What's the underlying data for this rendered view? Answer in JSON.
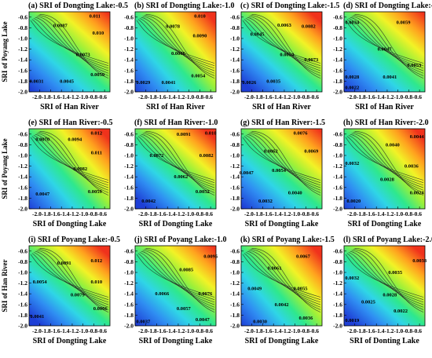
{
  "figure": {
    "rows": [
      {
        "ylabel": "SRI of Poyang Lake",
        "panels": [
          {
            "title": "(a)  SRI of Dongting Lake:-0.5",
            "xlabel": "SRI of Han River"
          },
          {
            "title": "(b)  SRI of Dongting Lake:-1.0",
            "xlabel": "SRI of Han River"
          },
          {
            "title": "(c)  SRI of Dongting Lake:-1.5",
            "xlabel": "SRI of Han River"
          },
          {
            "title": "(d)  SRI of Dongting Lake:-2.0",
            "xlabel": "SRI of Han River"
          }
        ]
      },
      {
        "ylabel": "SRI of Poyang Lake",
        "panels": [
          {
            "title": "(e)  SRI of Han River:-0.5",
            "xlabel": "SRI of Dongting Lake"
          },
          {
            "title": "(f)  SRI of Han River:-1.0",
            "xlabel": "SRI of Dongting Lake"
          },
          {
            "title": "(g)  SRI of Han River:-1.5",
            "xlabel": "SRI of Dongting Lake"
          },
          {
            "title": "(h)  SRI of Han River:-2.0",
            "xlabel": "SRI of Dongting Lake"
          }
        ]
      },
      {
        "ylabel": "SRI of Han River",
        "panels": [
          {
            "title": "(i)  SRI of Poyang Lake:-0.5",
            "xlabel": "SRI of Dongting Lake"
          },
          {
            "title": "(j)  SRI of Poyang Lake:-1.0",
            "xlabel": "SRI of Dongting Lake"
          },
          {
            "title": "(k)  SRI of Poyang Lake:-1.5",
            "xlabel": "SRI of Dongting Lake"
          },
          {
            "title": "(l)  SRI of Poyang Lake:-2.0",
            "xlabel": "SRI of Donting Lake"
          }
        ]
      }
    ]
  },
  "chart_data": [
    {
      "type": "heatmap",
      "panel": "a",
      "title": "SRI of Dongting Lake:-0.5",
      "xlabel": "SRI of Han River",
      "ylabel": "SRI of Poyang Lake",
      "xlim": [
        -2.0,
        -0.5
      ],
      "ylim": [
        -2.0,
        -0.5
      ],
      "xticks": [
        "-2.0",
        "-1.8",
        "-1.6",
        "-1.4",
        "-1.2",
        "-1.0",
        "-0.8",
        "-0.6"
      ],
      "yticks": [
        "-0.6",
        "-0.8",
        "-1.0",
        "-1.2",
        "-1.4",
        "-1.6",
        "-1.8",
        "-2.0"
      ],
      "vmin": 0.0031,
      "vmax": 0.0111,
      "contour_labels": [
        {
          "text": "0.011",
          "x": -0.78,
          "y": -0.58
        },
        {
          "text": "0.0087",
          "x": -1.42,
          "y": -0.76
        },
        {
          "text": "0.010",
          "x": -0.72,
          "y": -0.9
        },
        {
          "text": "0.0073",
          "x": -1.0,
          "y": -1.3
        },
        {
          "text": "0.0059",
          "x": -0.73,
          "y": -1.68
        },
        {
          "text": "0.0045",
          "x": -1.3,
          "y": -1.8
        },
        {
          "text": "0.0031",
          "x": -1.86,
          "y": -1.8
        }
      ]
    },
    {
      "type": "heatmap",
      "panel": "b",
      "title": "SRI of Dongting Lake:-1.0",
      "xlabel": "SRI of Han River",
      "ylabel": "SRI of Poyang Lake",
      "xlim": [
        -2.0,
        -0.5
      ],
      "ylim": [
        -2.0,
        -0.5
      ],
      "xticks": [
        "-2.0",
        "-1.8",
        "-1.6",
        "-1.4",
        "-1.2",
        "-1.0",
        "-0.8",
        "-0.6"
      ],
      "yticks": [
        "-0.6",
        "-0.8",
        "-1.0",
        "-1.2",
        "-1.4",
        "-1.6",
        "-1.8",
        "-2.0"
      ],
      "vmin": 0.0029,
      "vmax": 0.0104,
      "contour_labels": [
        {
          "text": "0.010",
          "x": -0.8,
          "y": -0.58
        },
        {
          "text": "0.0078",
          "x": -1.3,
          "y": -0.77
        },
        {
          "text": "0.0090",
          "x": -0.8,
          "y": -0.95
        },
        {
          "text": "0.0066",
          "x": -1.2,
          "y": -1.28
        },
        {
          "text": "0.0054",
          "x": -0.83,
          "y": -1.7
        },
        {
          "text": "0.0041",
          "x": -1.38,
          "y": -1.82
        },
        {
          "text": "0.0029",
          "x": -1.85,
          "y": -1.82
        }
      ]
    },
    {
      "type": "heatmap",
      "panel": "c",
      "title": "SRI of Dongting Lake:-1.5",
      "xlabel": "SRI of Han River",
      "ylabel": "SRI of Poyang Lake",
      "xlim": [
        -2.0,
        -0.5
      ],
      "ylim": [
        -2.0,
        -0.5
      ],
      "xticks": [
        "-2.0",
        "-1.8",
        "-1.6",
        "-1.4",
        "-1.2",
        "-1.0",
        "-0.8",
        "-0.6"
      ],
      "yticks": [
        "-0.6",
        "-0.8",
        "-1.0",
        "-1.2",
        "-1.4",
        "-1.6",
        "-1.8",
        "-2.0"
      ],
      "vmin": 0.0026,
      "vmax": 0.0092,
      "contour_labels": [
        {
          "text": "0.0063",
          "x": -1.2,
          "y": -0.75
        },
        {
          "text": "0.0082",
          "x": -0.75,
          "y": -0.77
        },
        {
          "text": "0.0045",
          "x": -1.7,
          "y": -0.92
        },
        {
          "text": "0.0054",
          "x": -1.15,
          "y": -1.3
        },
        {
          "text": "0.0073",
          "x": -0.7,
          "y": -1.4
        },
        {
          "text": "0.0035",
          "x": -1.4,
          "y": -1.8
        },
        {
          "text": "0.0026",
          "x": -1.85,
          "y": -1.82
        }
      ]
    },
    {
      "type": "heatmap",
      "panel": "d",
      "title": "SRI of Dongting Lake:-2.0",
      "xlabel": "SRI of Han River",
      "ylabel": "SRI of Poyang Lake",
      "xlim": [
        -2.0,
        -0.5
      ],
      "ylim": [
        -2.0,
        -0.5
      ],
      "xticks": [
        "-2.0",
        "-1.8",
        "-1.6",
        "-1.4",
        "-1.2",
        "-1.0",
        "-0.8",
        "-0.6"
      ],
      "yticks": [
        "-0.6",
        "-0.8",
        "-1.0",
        "-1.2",
        "-1.4",
        "-1.6",
        "-1.8",
        "-2.0"
      ],
      "vmin": 0.0022,
      "vmax": 0.0066,
      "contour_labels": [
        {
          "text": "0.0034",
          "x": -1.85,
          "y": -0.7
        },
        {
          "text": "0.0059",
          "x": -0.9,
          "y": -0.7
        },
        {
          "text": "0.0047",
          "x": -1.25,
          "y": -1.2
        },
        {
          "text": "0.0053",
          "x": -0.7,
          "y": -1.5
        },
        {
          "text": "0.0041",
          "x": -1.15,
          "y": -1.72
        },
        {
          "text": "0.0028",
          "x": -1.85,
          "y": -1.72
        },
        {
          "text": "0.0022",
          "x": -1.85,
          "y": -1.92
        }
      ]
    },
    {
      "type": "heatmap",
      "panel": "e",
      "title": "SRI of Han River:-0.5",
      "xlabel": "SRI of Dongting Lake",
      "ylabel": "SRI of Poyang Lake",
      "xlim": [
        -2.0,
        -0.5
      ],
      "ylim": [
        -2.0,
        -0.5
      ],
      "xticks": [
        "-2.0",
        "-1.8",
        "-1.6",
        "-1.4",
        "-1.2",
        "-1.0",
        "-0.8",
        "-0.6"
      ],
      "yticks": [
        "-0.6",
        "-0.8",
        "-1.0",
        "-1.2",
        "-1.4",
        "-1.6",
        "-1.8",
        "-2.0"
      ],
      "vmin": 0.0047,
      "vmax": 0.0125,
      "contour_labels": [
        {
          "text": "0.012",
          "x": -0.75,
          "y": -0.58
        },
        {
          "text": "0.0070",
          "x": -1.75,
          "y": -0.7
        },
        {
          "text": "0.0094",
          "x": -1.15,
          "y": -0.7
        },
        {
          "text": "0.011",
          "x": -0.75,
          "y": -0.95
        },
        {
          "text": "0.0082",
          "x": -1.05,
          "y": -1.25
        },
        {
          "text": "0.0059",
          "x": -0.78,
          "y": -1.68
        },
        {
          "text": "0.0047",
          "x": -1.75,
          "y": -1.72
        }
      ]
    },
    {
      "type": "heatmap",
      "panel": "f",
      "title": "SRI of Han River:-1.0",
      "xlabel": "SRI of Dongting Lake",
      "ylabel": "SRI of Poyang Lake",
      "xlim": [
        -2.0,
        -0.5
      ],
      "ylim": [
        -2.0,
        -0.5
      ],
      "xticks": [
        "-2.0",
        "-1.8",
        "-1.6",
        "-1.4",
        "-1.2",
        "-1.0",
        "-0.8",
        "-0.6"
      ],
      "yticks": [
        "-0.6",
        "-0.8",
        "-1.0",
        "-1.2",
        "-1.4",
        "-1.6",
        "-1.8",
        "-2.0"
      ],
      "vmin": 0.0042,
      "vmax": 0.0104,
      "contour_labels": [
        {
          "text": "0.0091",
          "x": -1.1,
          "y": -0.6
        },
        {
          "text": "0.010",
          "x": -0.6,
          "y": -0.58
        },
        {
          "text": "0.0072",
          "x": -1.6,
          "y": -1.0
        },
        {
          "text": "0.0082",
          "x": -0.68,
          "y": -1.0
        },
        {
          "text": "0.0062",
          "x": -1.15,
          "y": -1.4
        },
        {
          "text": "0.0052",
          "x": -0.75,
          "y": -1.68
        },
        {
          "text": "0.0042",
          "x": -1.75,
          "y": -1.85
        }
      ]
    },
    {
      "type": "heatmap",
      "panel": "g",
      "title": "SRI of Han River:-1.5",
      "xlabel": "SRI of Dongting Lake",
      "ylabel": "SRI of Poyang Lake",
      "xlim": [
        -2.0,
        -0.5
      ],
      "ylim": [
        -2.0,
        -0.5
      ],
      "xticks": [
        "-2.0",
        "-1.8",
        "-1.6",
        "-1.4",
        "-1.2",
        "-1.0",
        "-0.8",
        "-0.6"
      ],
      "yticks": [
        "-0.6",
        "-0.8",
        "-1.0",
        "-1.2",
        "-1.4",
        "-1.6",
        "-1.8",
        "-2.0"
      ],
      "vmin": 0.0032,
      "vmax": 0.0082,
      "contour_labels": [
        {
          "text": "0.0076",
          "x": -0.9,
          "y": -0.58
        },
        {
          "text": "0.0062",
          "x": -1.45,
          "y": -0.92
        },
        {
          "text": "0.0069",
          "x": -0.7,
          "y": -0.92
        },
        {
          "text": "0.0054",
          "x": -1.3,
          "y": -1.28
        },
        {
          "text": "0.0047",
          "x": -1.9,
          "y": -1.32
        },
        {
          "text": "0.0040",
          "x": -1.0,
          "y": -1.7
        },
        {
          "text": "0.0032",
          "x": -1.55,
          "y": -1.85
        }
      ]
    },
    {
      "type": "heatmap",
      "panel": "h",
      "title": "SRI of Han River:-2.0",
      "xlabel": "SRI of Dongting Lake",
      "ylabel": "SRI of Poyang Lake",
      "xlim": [
        -2.0,
        -0.5
      ],
      "ylim": [
        -2.0,
        -0.5
      ],
      "xticks": [
        "-2.0",
        "-1.8",
        "-1.6",
        "-1.4",
        "-1.2",
        "-1.0",
        "-0.8",
        "-0.6"
      ],
      "yticks": [
        "-0.6",
        "-0.8",
        "-1.0",
        "-1.2",
        "-1.4",
        "-1.6",
        "-1.8",
        "-2.0"
      ],
      "vmin": 0.002,
      "vmax": 0.0048,
      "contour_labels": [
        {
          "text": "0.0044",
          "x": -0.65,
          "y": -0.65
        },
        {
          "text": "0.0040",
          "x": -1.1,
          "y": -0.8
        },
        {
          "text": "0.0032",
          "x": -1.85,
          "y": -1.15
        },
        {
          "text": "0.0036",
          "x": -0.75,
          "y": -1.2
        },
        {
          "text": "0.0028",
          "x": -1.2,
          "y": -1.45
        },
        {
          "text": "0.0024",
          "x": -0.65,
          "y": -1.7
        },
        {
          "text": "0.0020",
          "x": -1.82,
          "y": -1.85
        }
      ]
    },
    {
      "type": "heatmap",
      "panel": "i",
      "title": "SRI of Poyang Lake:-0.5",
      "xlabel": "SRI of Dongting Lake",
      "ylabel": "SRI of Han River",
      "xlim": [
        -2.0,
        -0.5
      ],
      "ylim": [
        -2.0,
        -0.5
      ],
      "xticks": [
        "-2.0",
        "-1.8",
        "-1.6",
        "-1.4",
        "-1.2",
        "-1.0",
        "-0.8",
        "-0.6"
      ],
      "yticks": [
        "-0.6",
        "-0.8",
        "-1.0",
        "-1.2",
        "-1.4",
        "-1.6",
        "-1.8",
        "-2.0"
      ],
      "vmin": 0.0041,
      "vmax": 0.0125,
      "contour_labels": [
        {
          "text": "0.012",
          "x": -0.75,
          "y": -0.78
        },
        {
          "text": "0.0091",
          "x": -1.35,
          "y": -0.82
        },
        {
          "text": "0.0054",
          "x": -1.8,
          "y": -1.18
        },
        {
          "text": "0.010",
          "x": -0.75,
          "y": -1.18
        },
        {
          "text": "0.0079",
          "x": -1.1,
          "y": -1.42
        },
        {
          "text": "0.0066",
          "x": -0.68,
          "y": -1.68
        },
        {
          "text": "0.0041",
          "x": -1.85,
          "y": -1.82
        }
      ]
    },
    {
      "type": "heatmap",
      "panel": "j",
      "title": "SRI of Poyang Lake:-1.0",
      "xlabel": "SRI of Dongting Lake",
      "ylabel": "SRI of Han River",
      "xlim": [
        -2.0,
        -0.5
      ],
      "ylim": [
        -2.0,
        -0.5
      ],
      "xticks": [
        "-2.0",
        "-1.8",
        "-1.6",
        "-1.4",
        "-1.2",
        "-1.0",
        "-0.8",
        "-0.6"
      ],
      "yticks": [
        "-0.6",
        "-0.8",
        "-1.0",
        "-1.2",
        "-1.4",
        "-1.6",
        "-1.8",
        "-2.0"
      ],
      "vmin": 0.0037,
      "vmax": 0.0104,
      "contour_labels": [
        {
          "text": "0.0095",
          "x": -0.6,
          "y": -0.7
        },
        {
          "text": "0.0085",
          "x": -1.05,
          "y": -0.95
        },
        {
          "text": "0.0066",
          "x": -1.5,
          "y": -1.4
        },
        {
          "text": "0.0076",
          "x": -0.7,
          "y": -1.4
        },
        {
          "text": "0.0057",
          "x": -1.1,
          "y": -1.68
        },
        {
          "text": "0.0047",
          "x": -0.75,
          "y": -1.88
        },
        {
          "text": "0.0037",
          "x": -1.85,
          "y": -1.92
        }
      ]
    },
    {
      "type": "heatmap",
      "panel": "k",
      "title": "SRI of Poyang Lake:-1.5",
      "xlabel": "SRI of Dongting Lake",
      "ylabel": "SRI of Han River",
      "xlim": [
        -2.0,
        -0.5
      ],
      "ylim": [
        -2.0,
        -0.5
      ],
      "xticks": [
        "-2.0",
        "-1.8",
        "-1.6",
        "-1.4",
        "-1.2",
        "-1.0",
        "-0.8",
        "-0.6"
      ],
      "yticks": [
        "-0.6",
        "-0.8",
        "-1.0",
        "-1.2",
        "-1.4",
        "-1.6",
        "-1.8",
        "-2.0"
      ],
      "vmin": 0.003,
      "vmax": 0.008,
      "contour_labels": [
        {
          "text": "0.0067",
          "x": -0.85,
          "y": -0.7
        },
        {
          "text": "0.0061",
          "x": -1.38,
          "y": -0.92
        },
        {
          "text": "0.0049",
          "x": -1.75,
          "y": -1.3
        },
        {
          "text": "0.0055",
          "x": -0.9,
          "y": -1.3
        },
        {
          "text": "0.0042",
          "x": -1.25,
          "y": -1.6
        },
        {
          "text": "0.0036",
          "x": -0.8,
          "y": -1.85
        },
        {
          "text": "0.0030",
          "x": -1.65,
          "y": -1.92
        }
      ]
    },
    {
      "type": "heatmap",
      "panel": "l",
      "title": "SRI of Poyang Lake:-2.0",
      "xlabel": "SRI of Donting Lake",
      "ylabel": "SRI of Han River",
      "xlim": [
        -2.0,
        -0.5
      ],
      "ylim": [
        -2.0,
        -0.5
      ],
      "xticks": [
        "-2.0",
        "-1.8",
        "-1.6",
        "-1.4",
        "-1.2",
        "-1.0",
        "-0.8",
        "-0.6"
      ],
      "yticks": [
        "-0.6",
        "-0.8",
        "-1.0",
        "-1.2",
        "-1.4",
        "-1.6",
        "-1.8",
        "-2.0"
      ],
      "vmin": 0.0019,
      "vmax": 0.0044,
      "contour_labels": [
        {
          "text": "0.0038",
          "x": -0.6,
          "y": -0.78
        },
        {
          "text": "0.0035",
          "x": -1.05,
          "y": -1.0
        },
        {
          "text": "0.0032",
          "x": -1.85,
          "y": -1.1
        },
        {
          "text": "0.0028",
          "x": -1.15,
          "y": -1.42
        },
        {
          "text": "0.0025",
          "x": -1.55,
          "y": -1.55
        },
        {
          "text": "0.0022",
          "x": -0.95,
          "y": -1.72
        },
        {
          "text": "0.0019",
          "x": -1.85,
          "y": -1.9
        }
      ]
    }
  ]
}
